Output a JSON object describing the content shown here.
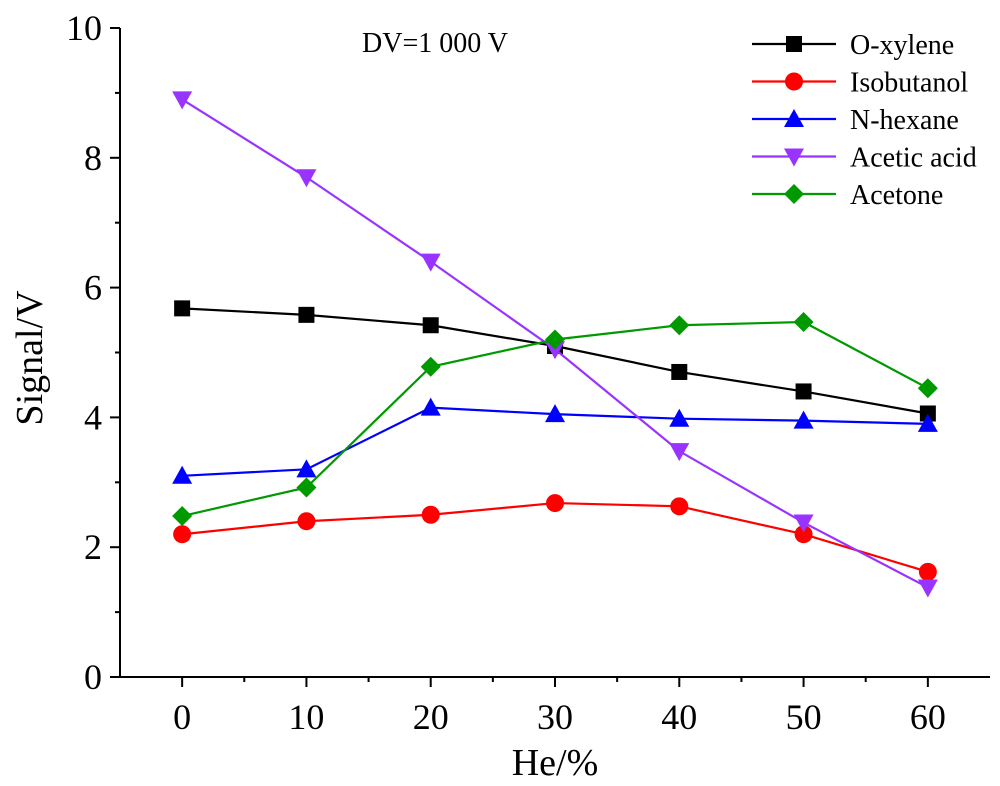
{
  "chart_data": {
    "type": "line",
    "xlabel": "He/%",
    "ylabel": "Signal/V",
    "annotation": "DV=1 000 V",
    "xlim": [
      -5,
      65
    ],
    "ylim": [
      0,
      10
    ],
    "x": [
      0,
      10,
      20,
      30,
      40,
      50,
      60
    ],
    "x_ticks": [
      "0",
      "10",
      "20",
      "30",
      "40",
      "50",
      "60"
    ],
    "y_ticks": [
      "0",
      "2",
      "4",
      "6",
      "8",
      "10"
    ],
    "legend_position": "top-right",
    "series": [
      {
        "name": "O-xylene",
        "color": "#000000",
        "marker": "square",
        "values": [
          5.68,
          5.58,
          5.42,
          5.1,
          4.7,
          4.4,
          4.06
        ]
      },
      {
        "name": "Isobutanol",
        "color": "#ff0000",
        "marker": "circle",
        "values": [
          2.2,
          2.4,
          2.5,
          2.68,
          2.63,
          2.2,
          1.62
        ]
      },
      {
        "name": "N-hexane",
        "color": "#0000ff",
        "marker": "triangle-up",
        "values": [
          3.1,
          3.2,
          4.15,
          4.05,
          3.98,
          3.95,
          3.9
        ]
      },
      {
        "name": "Acetic acid",
        "color": "#9933ff",
        "marker": "triangle-down",
        "values": [
          8.9,
          7.7,
          6.4,
          5.05,
          3.48,
          2.38,
          1.38
        ]
      },
      {
        "name": "Acetone",
        "color": "#009900",
        "marker": "diamond",
        "values": [
          2.48,
          2.92,
          4.78,
          5.2,
          5.42,
          5.47,
          4.45
        ]
      }
    ]
  }
}
